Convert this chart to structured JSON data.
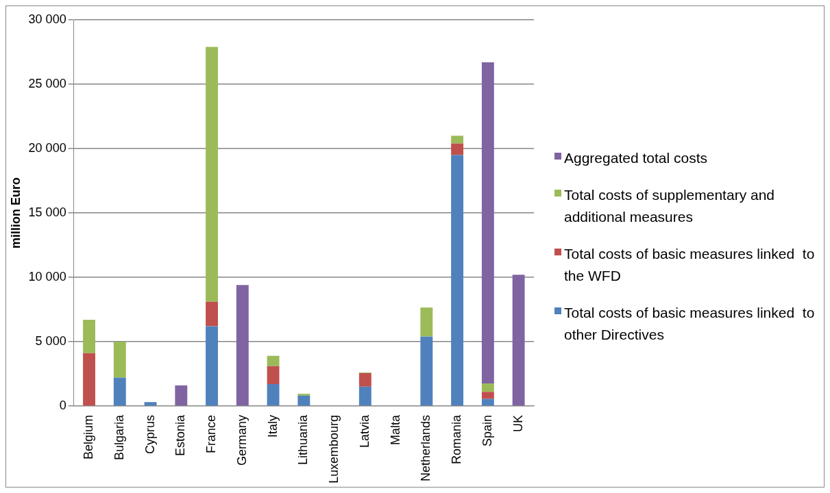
{
  "chart_data": {
    "type": "bar",
    "stacked": true,
    "ylabel": "million Euro",
    "categories": [
      "Belgium",
      "Bulgaria",
      "Cyprus",
      "Estonia",
      "France",
      "Germany",
      "Italy",
      "Lithuania",
      "Luxembourg",
      "Latvia",
      "Malta",
      "Netherlands",
      "Romania",
      "Spain",
      "UK"
    ],
    "series": [
      {
        "name": "Total costs of basic measures linked  to other Directives",
        "color": "#4f81bd",
        "values": [
          0,
          2200,
          300,
          0,
          6200,
          0,
          1700,
          800,
          0,
          1500,
          0,
          5400,
          19500,
          550,
          0
        ]
      },
      {
        "name": "Total costs of basic measures linked  to the WFD",
        "color": "#c0504d",
        "values": [
          4100,
          0,
          0,
          0,
          1900,
          0,
          1400,
          0,
          0,
          1050,
          0,
          0,
          900,
          550,
          0
        ]
      },
      {
        "name": "Total costs of supplementary and additional measures",
        "color": "#9bbb59",
        "values": [
          2600,
          2800,
          0,
          0,
          19800,
          0,
          800,
          150,
          0,
          50,
          0,
          2250,
          600,
          650,
          0
        ]
      },
      {
        "name": "Aggregated total costs",
        "color": "#8064a2",
        "values": [
          0,
          0,
          0,
          1600,
          0,
          9400,
          0,
          0,
          0,
          0,
          0,
          0,
          0,
          24950,
          10200
        ]
      }
    ],
    "ylim": [
      0,
      30000
    ],
    "yticks": [
      {
        "value": 0,
        "label": "0"
      },
      {
        "value": 5000,
        "label": "5 000"
      },
      {
        "value": 10000,
        "label": "10 000"
      },
      {
        "value": 15000,
        "label": "15 000"
      },
      {
        "value": 20000,
        "label": "20 000"
      },
      {
        "value": 25000,
        "label": "25 000"
      },
      {
        "value": 30000,
        "label": "30 000"
      }
    ],
    "grid": "y",
    "legend": "right"
  }
}
